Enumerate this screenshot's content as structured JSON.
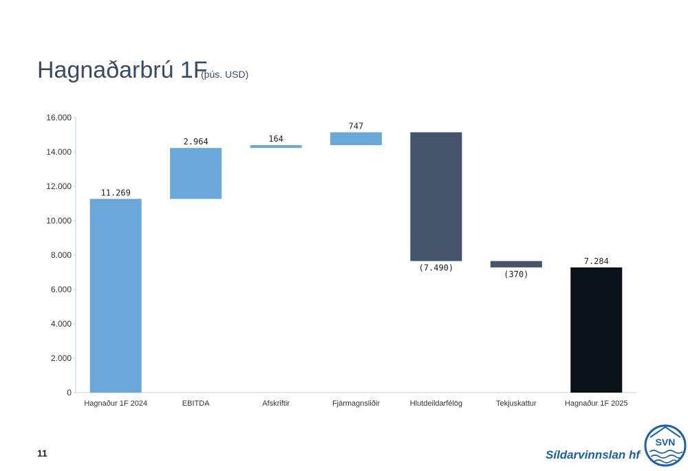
{
  "chart_data": {
    "type": "waterfall",
    "title": "Hagnaðarbrú 1F",
    "subtitle": "(þús. USD)",
    "categories": [
      "Hagnaður 1F 2024",
      "EBITDA",
      "Afskriftir",
      "Fjármagnsliðir",
      "Hlutdeildarfélög",
      "Tekjuskattur",
      "Hagnaður 1F 2025"
    ],
    "values": [
      11269,
      2964,
      164,
      747,
      -7490,
      -370,
      7284
    ],
    "value_labels": [
      "11.269",
      "2.964",
      "164",
      "747",
      "(7.490)",
      "(370)",
      "7.284"
    ],
    "measure": [
      "absolute",
      "relative",
      "relative",
      "relative",
      "relative",
      "relative",
      "absolute"
    ],
    "colors": [
      "#6aa8dc",
      "#6aa8dc",
      "#6aa8dc",
      "#6aa8dc",
      "#44546a",
      "#44546a",
      "#0a1118"
    ],
    "ylim": [
      0,
      16000
    ],
    "yticks": [
      0,
      {
        "value": 2000,
        "label": "2.000"
      },
      {
        "value": 4000,
        "label": "4.000"
      },
      {
        "value": 6000,
        "label": "6.000"
      },
      {
        "value": 8000,
        "label": "8.000"
      },
      {
        "value": 10000,
        "label": "10.000"
      },
      {
        "value": 12000,
        "label": "12.000"
      },
      {
        "value": 14000,
        "label": "14.000"
      },
      {
        "value": 16000,
        "label": "16.000"
      }
    ]
  },
  "page_number": "11",
  "logo": {
    "name": "Síldarvinnslan hf",
    "mark": "SVN"
  }
}
